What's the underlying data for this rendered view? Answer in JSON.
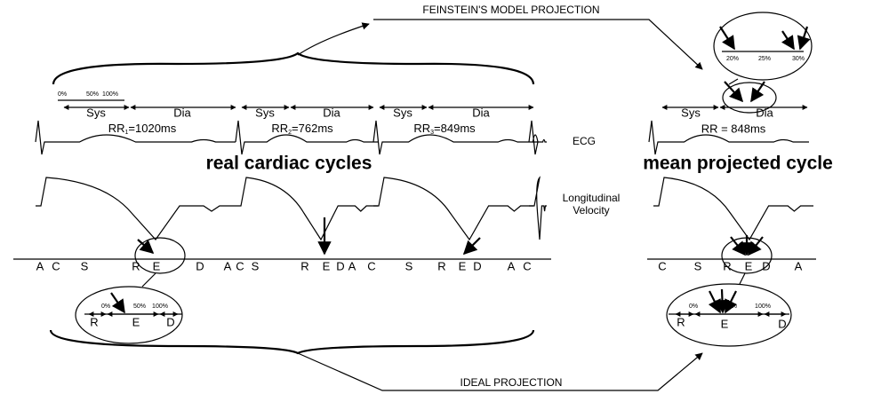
{
  "top_projection": "FEINSTEIN'S MODEL PROJECTION",
  "bottom_projection": "IDEAL PROJECTION",
  "left": {
    "title": "real cardiac cycles",
    "percent_labels": [
      "0%",
      "50%",
      "100%"
    ],
    "phases": [
      "Sys",
      "Dia",
      "Sys",
      "Dia",
      "Sys",
      "Dia"
    ],
    "rr": [
      {
        "prefix": "RR",
        "sub": "1",
        "rest": "=1020ms"
      },
      {
        "prefix": "RR",
        "sub": "2",
        "rest": "=762ms"
      },
      {
        "prefix": "RR",
        "sub": "3",
        "rest": "=849ms"
      }
    ],
    "axis_letters": [
      "A",
      "C",
      "S",
      "R",
      "E",
      "D",
      "A",
      "C",
      "S",
      "R",
      "E",
      "D",
      "A",
      "C",
      "S",
      "R",
      "E",
      "D",
      "A",
      "C"
    ],
    "zoom": {
      "percent_labels": [
        "0%",
        "50%",
        "100%"
      ],
      "letters": [
        "R",
        "E",
        "D"
      ]
    }
  },
  "middle": {
    "ecg": "ECG",
    "velocity": [
      "Longitudinal",
      "Velocity"
    ]
  },
  "right": {
    "title": "mean projected cycle",
    "top_zoom": [
      "20%",
      "25%",
      "30%"
    ],
    "phases": [
      "Sys",
      "Dia"
    ],
    "rr": "RR = 848ms",
    "axis_letters": [
      "C",
      "S",
      "R",
      "E",
      "D",
      "A"
    ],
    "zoom": {
      "percent_labels": [
        "0%",
        "50%",
        "100%"
      ],
      "letters": [
        "R",
        "E",
        "D"
      ]
    }
  }
}
